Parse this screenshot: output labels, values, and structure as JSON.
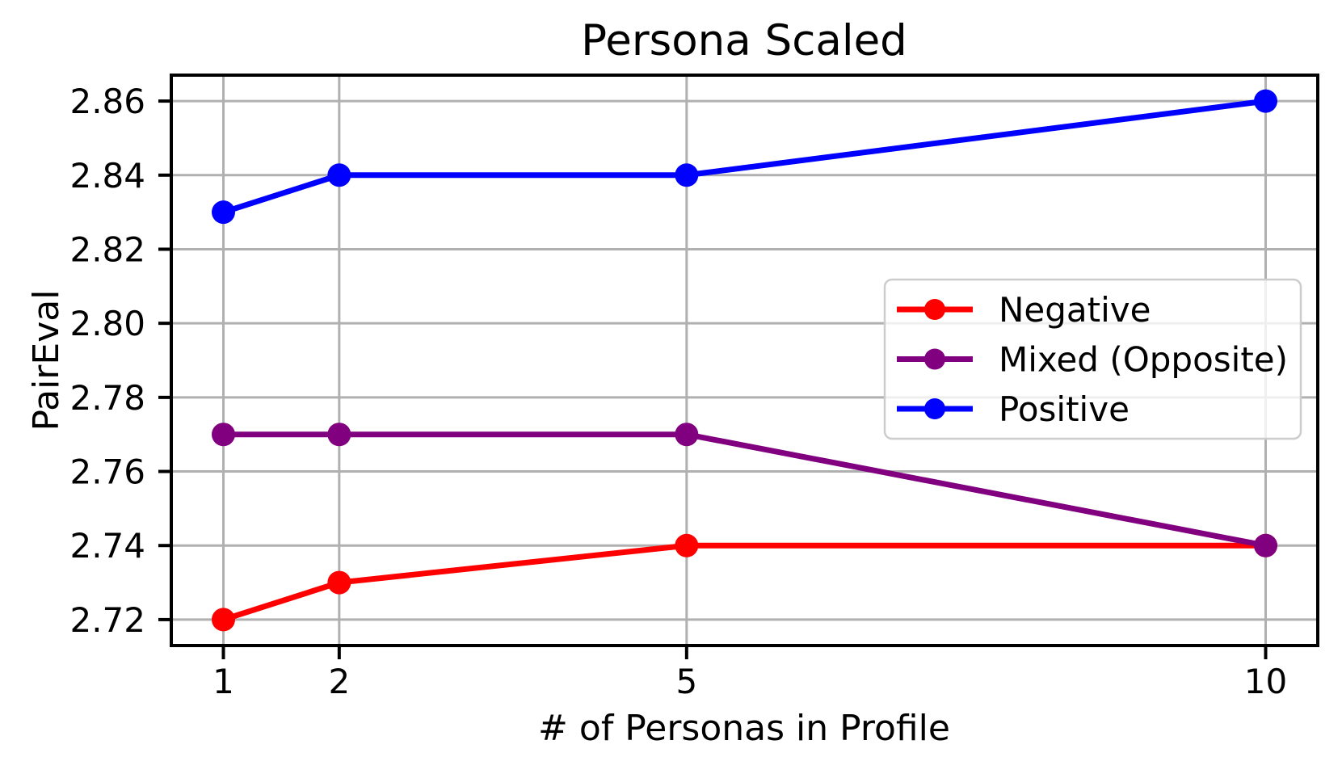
{
  "figure": {
    "background": "#ffffff"
  },
  "chart_data": {
    "type": "line",
    "title": "Persona Scaled",
    "xlabel": "# of Personas in Profile",
    "ylabel": "PairEval",
    "x": [
      1,
      2,
      5,
      10
    ],
    "x_tick_labels": [
      "1",
      "2",
      "5",
      "10"
    ],
    "y_tick_values": [
      2.72,
      2.74,
      2.76,
      2.78,
      2.8,
      2.82,
      2.84,
      2.86
    ],
    "y_tick_labels": [
      "2.72",
      "2.74",
      "2.76",
      "2.78",
      "2.80",
      "2.82",
      "2.84",
      "2.86"
    ],
    "xlim": [
      0.55,
      10.45
    ],
    "ylim": [
      2.713,
      2.867
    ],
    "grid": true,
    "grid_color": "#b0b0b0",
    "axis_color": "#000000",
    "legend": {
      "position": "center right",
      "border_color": "#cccccc",
      "background": "#ffffff",
      "entries": [
        "Negative",
        "Mixed (Opposite)",
        "Positive"
      ]
    },
    "series": [
      {
        "name": "Negative",
        "color": "#ff0000",
        "values": [
          2.72,
          2.73,
          2.74,
          2.74
        ]
      },
      {
        "name": "Mixed (Opposite)",
        "color": "#800080",
        "values": [
          2.77,
          2.77,
          2.77,
          2.74
        ]
      },
      {
        "name": "Positive",
        "color": "#0000ff",
        "values": [
          2.83,
          2.84,
          2.84,
          2.86
        ]
      }
    ]
  }
}
